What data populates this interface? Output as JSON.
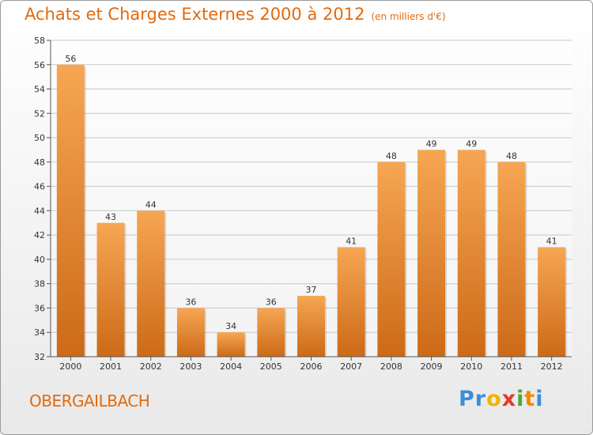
{
  "header": {
    "title": "Achats et Charges Externes 2000 à 2012",
    "unit": "(en milliers d'€)"
  },
  "footer": {
    "commune": "OBERGAILBACH",
    "logo_letters": [
      "P",
      "r",
      "o",
      "x",
      "i",
      "t",
      "i"
    ],
    "logo_colors": [
      "#3b8fd6",
      "#3b8fd6",
      "#f0b400",
      "#e23a2a",
      "#4aa83a",
      "#f08a00",
      "#3b8fd6"
    ]
  },
  "colors": {
    "accent": "#e36a0d",
    "bar_top": "#f6a653",
    "bar_bottom": "#cc6a18"
  },
  "chart_data": {
    "type": "bar",
    "title": "Achats et Charges Externes 2000 à 2012",
    "categories": [
      "2000",
      "2001",
      "2002",
      "2003",
      "2004",
      "2005",
      "2006",
      "2007",
      "2008",
      "2009",
      "2010",
      "2011",
      "2012"
    ],
    "values": [
      56,
      43,
      44,
      36,
      34,
      36,
      37,
      41,
      48,
      49,
      49,
      48,
      41
    ],
    "ylim": [
      32,
      58
    ],
    "yticks": [
      32,
      34,
      36,
      38,
      40,
      42,
      44,
      46,
      48,
      50,
      52,
      54,
      56,
      58
    ],
    "grid": true,
    "data_labels": true
  }
}
